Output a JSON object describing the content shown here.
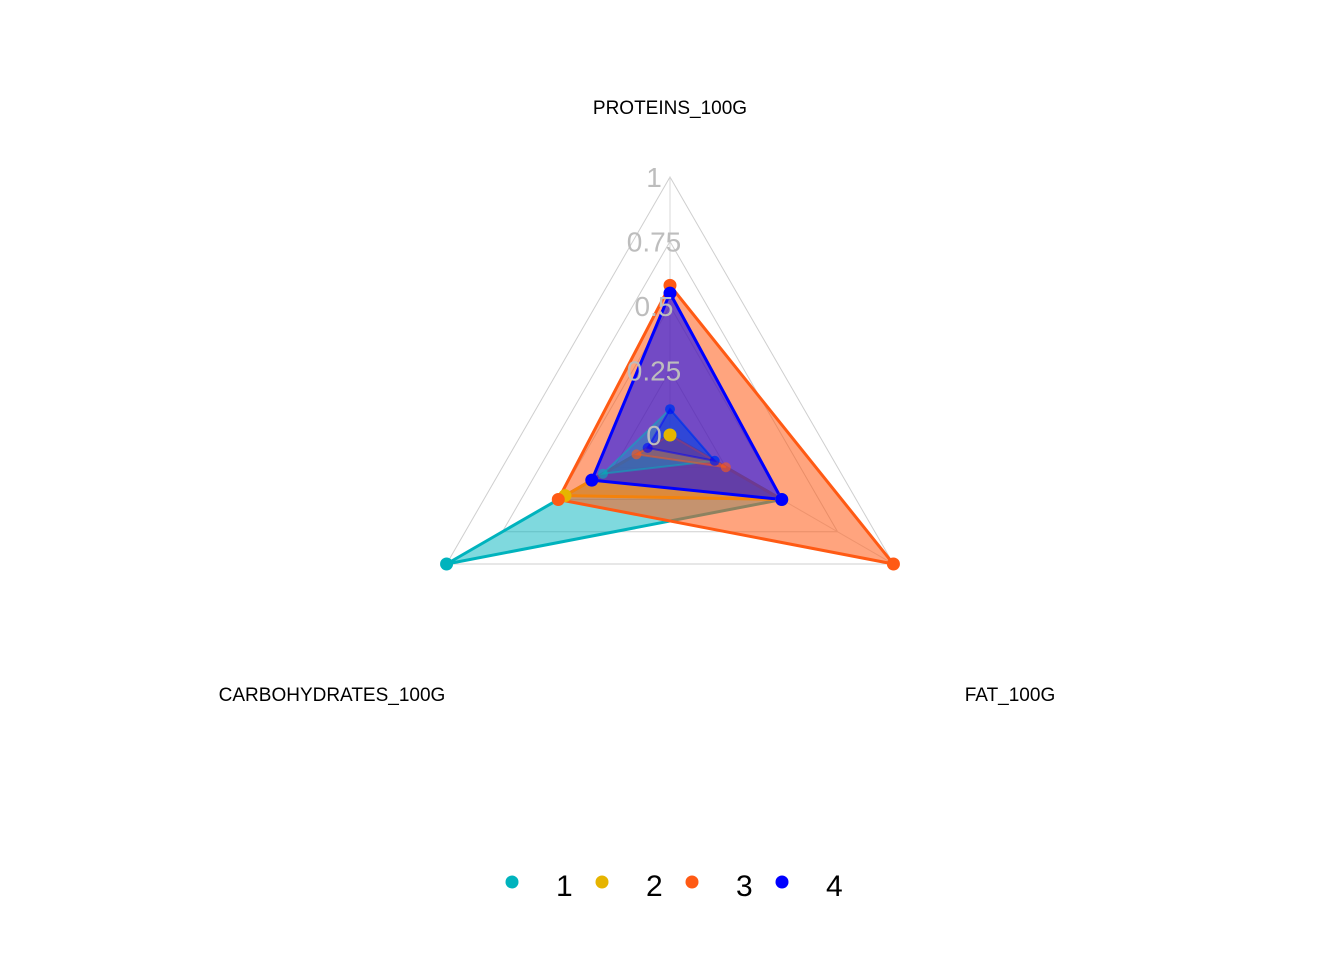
{
  "chart_data": {
    "type": "radar",
    "axes": [
      "PROTEINS_100G",
      "FAT_100G",
      "CARBOHYDRATES_100G"
    ],
    "rlim": [
      0,
      1
    ],
    "ticks": [
      "0",
      "0.25",
      "0.5",
      "0.75",
      "1"
    ],
    "grid": true,
    "legend_position": "bottom",
    "series": [
      {
        "name": "1",
        "color": "#00b3bd",
        "values": [
          0.0,
          0.5,
          1.0
        ]
      },
      {
        "name": "2",
        "color": "#e6b400",
        "values": [
          0.0,
          0.5,
          0.47
        ]
      },
      {
        "name": "3",
        "color": "#ff5a14",
        "values": [
          0.58,
          1.0,
          0.5
        ]
      },
      {
        "name": "4",
        "color": "#0000ff",
        "values": [
          0.55,
          0.5,
          0.35
        ]
      }
    ],
    "reference_polygons": [
      {
        "series": "1",
        "values": [
          0.1,
          0.2,
          0.3
        ]
      },
      {
        "series": "3",
        "values": [
          0.0,
          0.25,
          0.15
        ]
      },
      {
        "series": "4",
        "values": [
          0.1,
          0.2,
          0.1
        ]
      }
    ]
  }
}
